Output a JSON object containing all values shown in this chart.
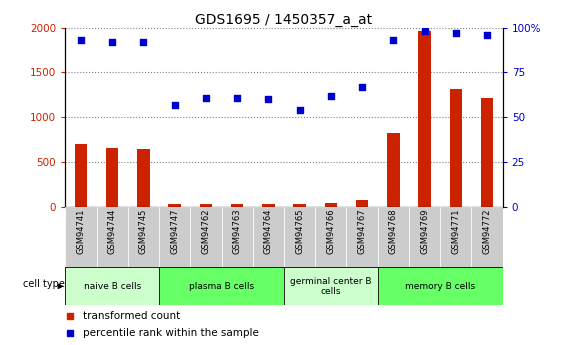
{
  "title": "GDS1695 / 1450357_a_at",
  "samples": [
    "GSM94741",
    "GSM94744",
    "GSM94745",
    "GSM94747",
    "GSM94762",
    "GSM94763",
    "GSM94764",
    "GSM94765",
    "GSM94766",
    "GSM94767",
    "GSM94768",
    "GSM94769",
    "GSM94771",
    "GSM94772"
  ],
  "transformed_count": [
    700,
    660,
    650,
    30,
    30,
    30,
    30,
    30,
    50,
    75,
    820,
    1960,
    1310,
    1210
  ],
  "percentile_rank": [
    93,
    92,
    92,
    57,
    61,
    61,
    60,
    54,
    62,
    67,
    93,
    98,
    97,
    96
  ],
  "cell_types": [
    {
      "label": "naive B cells",
      "start": 0,
      "end": 3,
      "color": "#ccffcc"
    },
    {
      "label": "plasma B cells",
      "start": 3,
      "end": 7,
      "color": "#66ff66"
    },
    {
      "label": "germinal center B\ncells",
      "start": 7,
      "end": 10,
      "color": "#ccffcc"
    },
    {
      "label": "memory B cells",
      "start": 10,
      "end": 14,
      "color": "#66ff66"
    }
  ],
  "bar_color": "#cc2200",
  "scatter_color": "#0000cc",
  "left_ylim": [
    0,
    2000
  ],
  "left_yticks": [
    0,
    500,
    1000,
    1500,
    2000
  ],
  "right_yticks": [
    0,
    500,
    1000,
    1500,
    2000
  ],
  "right_yticklabels": [
    "0",
    "25",
    "50",
    "75",
    "100%"
  ],
  "bg_color": "#ffffff",
  "tick_label_color_left": "#cc2200",
  "tick_label_color_right": "#0000cc",
  "sample_cell_bg": "#cccccc"
}
